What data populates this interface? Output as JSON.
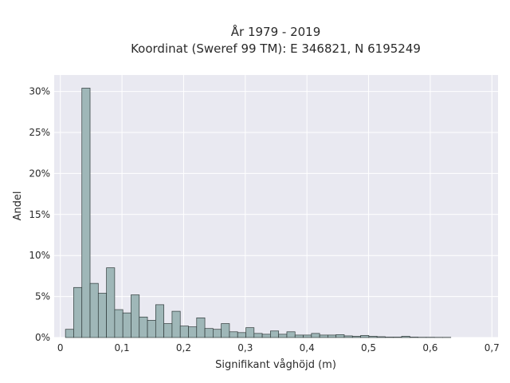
{
  "chart_data": {
    "type": "bar",
    "title_line1": "År 1979 - 2019",
    "title_line2": "Koordinat (Sweref 99 TM): E 346821, N 6195249",
    "xlabel": "Signifikant våghöjd (m)",
    "ylabel": "Andel",
    "xlim": [
      -0.01,
      0.71
    ],
    "ylim": [
      0,
      32
    ],
    "x_ticks": [
      0,
      0.1,
      0.2,
      0.3,
      0.4,
      0.5,
      0.6,
      0.7
    ],
    "x_tick_labels": [
      "0",
      "0,1",
      "0,2",
      "0,3",
      "0,4",
      "0,5",
      "0,6",
      "0,7"
    ],
    "y_ticks": [
      0,
      5,
      10,
      15,
      20,
      25,
      30
    ],
    "y_tick_labels": [
      "0%",
      "5%",
      "10%",
      "15%",
      "20%",
      "25%",
      "30%"
    ],
    "grid": true,
    "bin_width": 0.0133,
    "bin_start": 0.0083,
    "values": [
      1.0,
      6.1,
      30.4,
      6.6,
      5.4,
      8.5,
      3.4,
      3.0,
      5.2,
      2.5,
      2.1,
      4.0,
      1.7,
      3.2,
      1.4,
      1.3,
      2.4,
      1.1,
      1.0,
      1.7,
      0.7,
      0.6,
      1.2,
      0.5,
      0.4,
      0.8,
      0.4,
      0.7,
      0.3,
      0.3,
      0.5,
      0.3,
      0.3,
      0.35,
      0.2,
      0.15,
      0.25,
      0.15,
      0.1,
      0.05,
      0.05,
      0.15,
      0.05,
      0.03,
      0.03,
      0.02,
      0.02
    ],
    "bar_color": "#9fb7b8",
    "bar_edge_color": "#2f3a3a",
    "plot_bg": "#e9e9f1",
    "grid_color": "#ffffff"
  }
}
